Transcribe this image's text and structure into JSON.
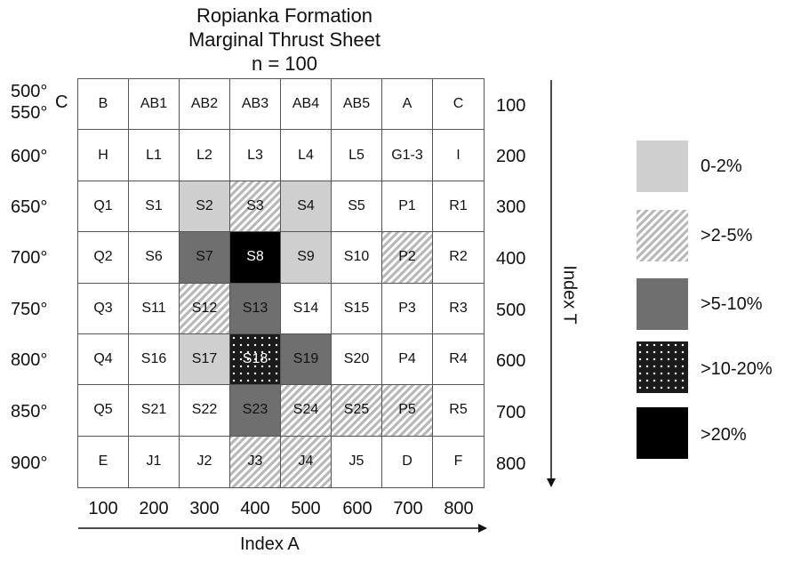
{
  "title": {
    "line1": "Ropianka Formation",
    "line2": "Marginal Thrust Sheet",
    "line3": "n = 100"
  },
  "left_axis": {
    "unit": "C",
    "labels": [
      "500°",
      "550°",
      "600°",
      "650°",
      "700°",
      "750°",
      "800°",
      "850°",
      "900°"
    ]
  },
  "right_axis": {
    "title": "Index T",
    "labels": [
      "100",
      "200",
      "300",
      "400",
      "500",
      "600",
      "700",
      "800"
    ]
  },
  "bottom_axis": {
    "title": "Index A",
    "labels": [
      "100",
      "200",
      "300",
      "400",
      "500",
      "600",
      "700",
      "800"
    ]
  },
  "grid": {
    "rows": [
      [
        "B",
        "AB1",
        "AB2",
        "AB3",
        "AB4",
        "AB5",
        "A",
        "C"
      ],
      [
        "H",
        "L1",
        "L2",
        "L3",
        "L4",
        "L5",
        "G1-3",
        "I"
      ],
      [
        "Q1",
        "S1",
        "S2",
        "S3",
        "S4",
        "S5",
        "P1",
        "R1"
      ],
      [
        "Q2",
        "S6",
        "S7",
        "S8",
        "S9",
        "S10",
        "P2",
        "R2"
      ],
      [
        "Q3",
        "S11",
        "S12",
        "S13",
        "S14",
        "S15",
        "P3",
        "R3"
      ],
      [
        "Q4",
        "S16",
        "S17",
        "S18",
        "S19",
        "S20",
        "P4",
        "R4"
      ],
      [
        "Q5",
        "S21",
        "S22",
        "S23",
        "S24",
        "S25",
        "P5",
        "R5"
      ],
      [
        "E",
        "J1",
        "J2",
        "J3",
        "J4",
        "J5",
        "D",
        "F"
      ]
    ],
    "fills": {
      "S2": "0-2%",
      "S9": "0-2%",
      "S4": "0-2%",
      "S17": "0-2%",
      "S3": ">2-5%",
      "P2": ">2-5%",
      "S12": ">2-5%",
      "S24": ">2-5%",
      "S25": ">2-5%",
      "P5": ">2-5%",
      "J3": ">2-5%",
      "J4": ">2-5%",
      "S7": ">5-10%",
      "S13": ">5-10%",
      "S19": ">5-10%",
      "S23": ">5-10%",
      "S18": ">10-20%",
      "S8": ">20%"
    }
  },
  "legend": [
    {
      "label": "0-2%",
      "style": "light"
    },
    {
      "label": ">2-5%",
      "style": "hatch"
    },
    {
      "label": ">5-10%",
      "style": "medium"
    },
    {
      "label": ">10-20%",
      "style": "dots"
    },
    {
      "label": ">20%",
      "style": "black"
    }
  ]
}
